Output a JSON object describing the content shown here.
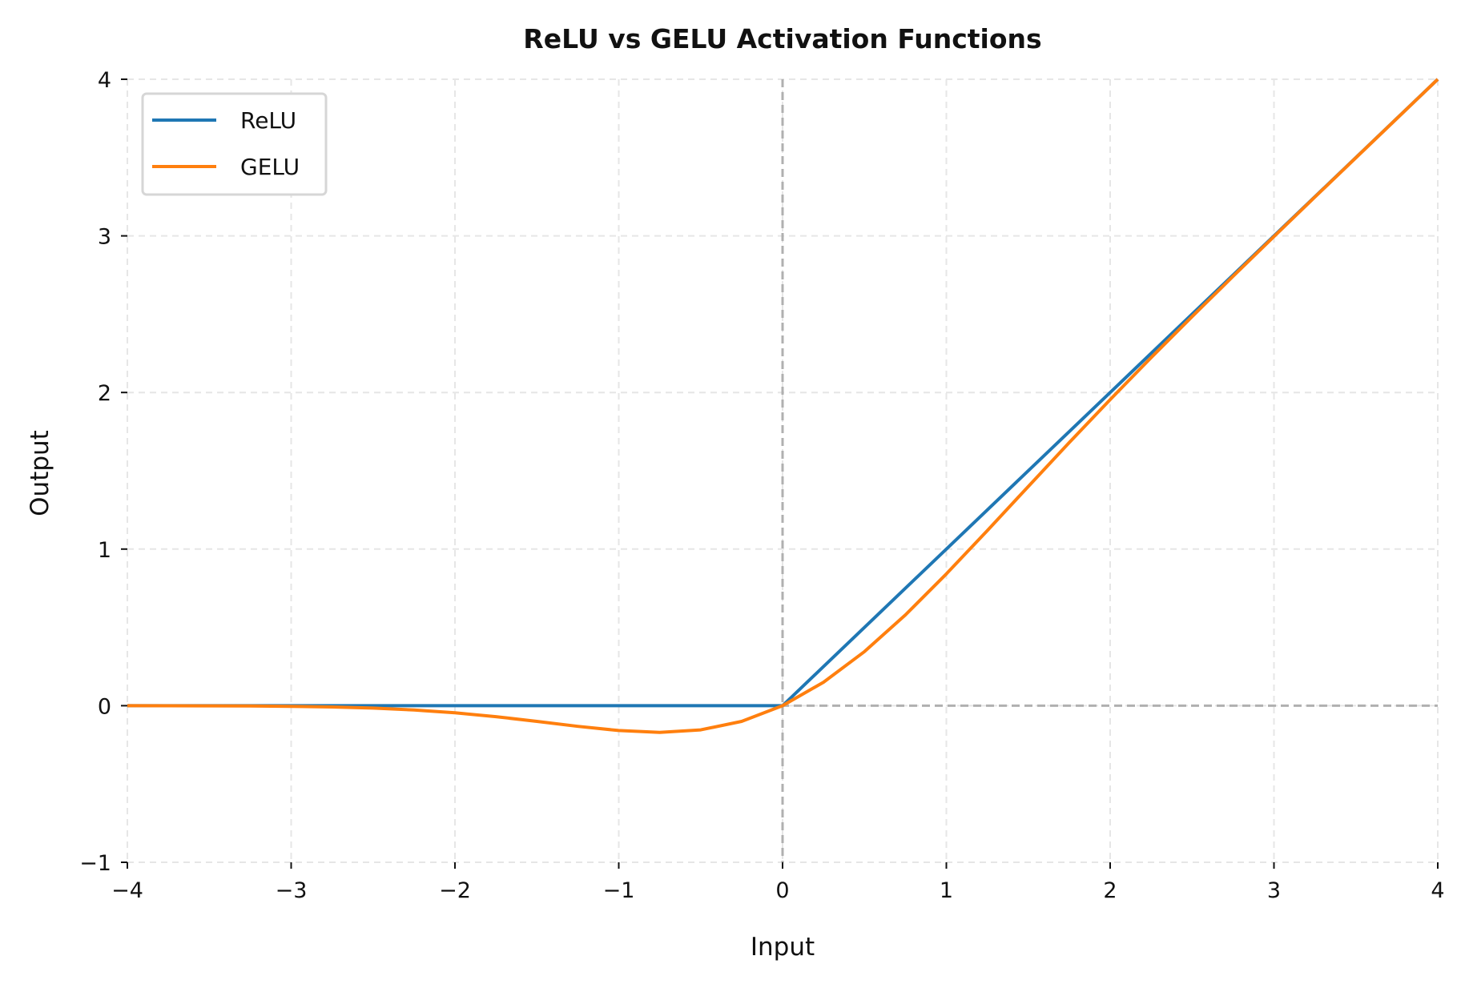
{
  "chart_data": {
    "type": "line",
    "title": "ReLU vs GELU Activation Functions",
    "xlabel": "Input",
    "ylabel": "Output",
    "xlim": [
      -4,
      4
    ],
    "ylim": [
      -1,
      4
    ],
    "xticks": [
      -4,
      -3,
      -2,
      -1,
      0,
      1,
      2,
      3,
      4
    ],
    "xtick_labels": [
      "−4",
      "−3",
      "−2",
      "−1",
      "0",
      "1",
      "2",
      "3",
      "4"
    ],
    "yticks": [
      -1,
      0,
      1,
      2,
      3,
      4
    ],
    "ytick_labels": [
      "−1",
      "0",
      "1",
      "2",
      "3",
      "4"
    ],
    "grid": true,
    "reference_lines": {
      "x": 0,
      "y": 0,
      "style": "dashed",
      "color": "#b0b0b0"
    },
    "legend_position": "top-left",
    "series": [
      {
        "name": "ReLU",
        "color": "#1f77b4",
        "x": [
          -4,
          0,
          4
        ],
        "y": [
          0,
          0,
          4
        ]
      },
      {
        "name": "GELU",
        "color": "#ff7f0e",
        "x": [
          -4,
          -3.75,
          -3.5,
          -3.25,
          -3,
          -2.75,
          -2.5,
          -2.25,
          -2,
          -1.75,
          -1.5,
          -1.25,
          -1,
          -0.75,
          -0.5,
          -0.25,
          0,
          0.25,
          0.5,
          0.75,
          1,
          1.25,
          1.5,
          1.75,
          2,
          2.25,
          2.5,
          2.75,
          3,
          3.25,
          3.5,
          3.75,
          4
        ],
        "y": [
          -0.0001,
          -0.0003,
          -0.0008,
          -0.0019,
          -0.004,
          -0.0082,
          -0.0155,
          -0.0275,
          -0.0455,
          -0.0701,
          -0.1002,
          -0.1321,
          -0.1587,
          -0.17,
          -0.1543,
          -0.1003,
          0,
          0.1497,
          0.3457,
          0.58,
          0.8413,
          1.1179,
          1.3998,
          1.6799,
          1.9545,
          2.2225,
          2.4845,
          2.7418,
          2.996,
          3.2481,
          3.4992,
          3.7497,
          3.9999
        ]
      }
    ]
  }
}
